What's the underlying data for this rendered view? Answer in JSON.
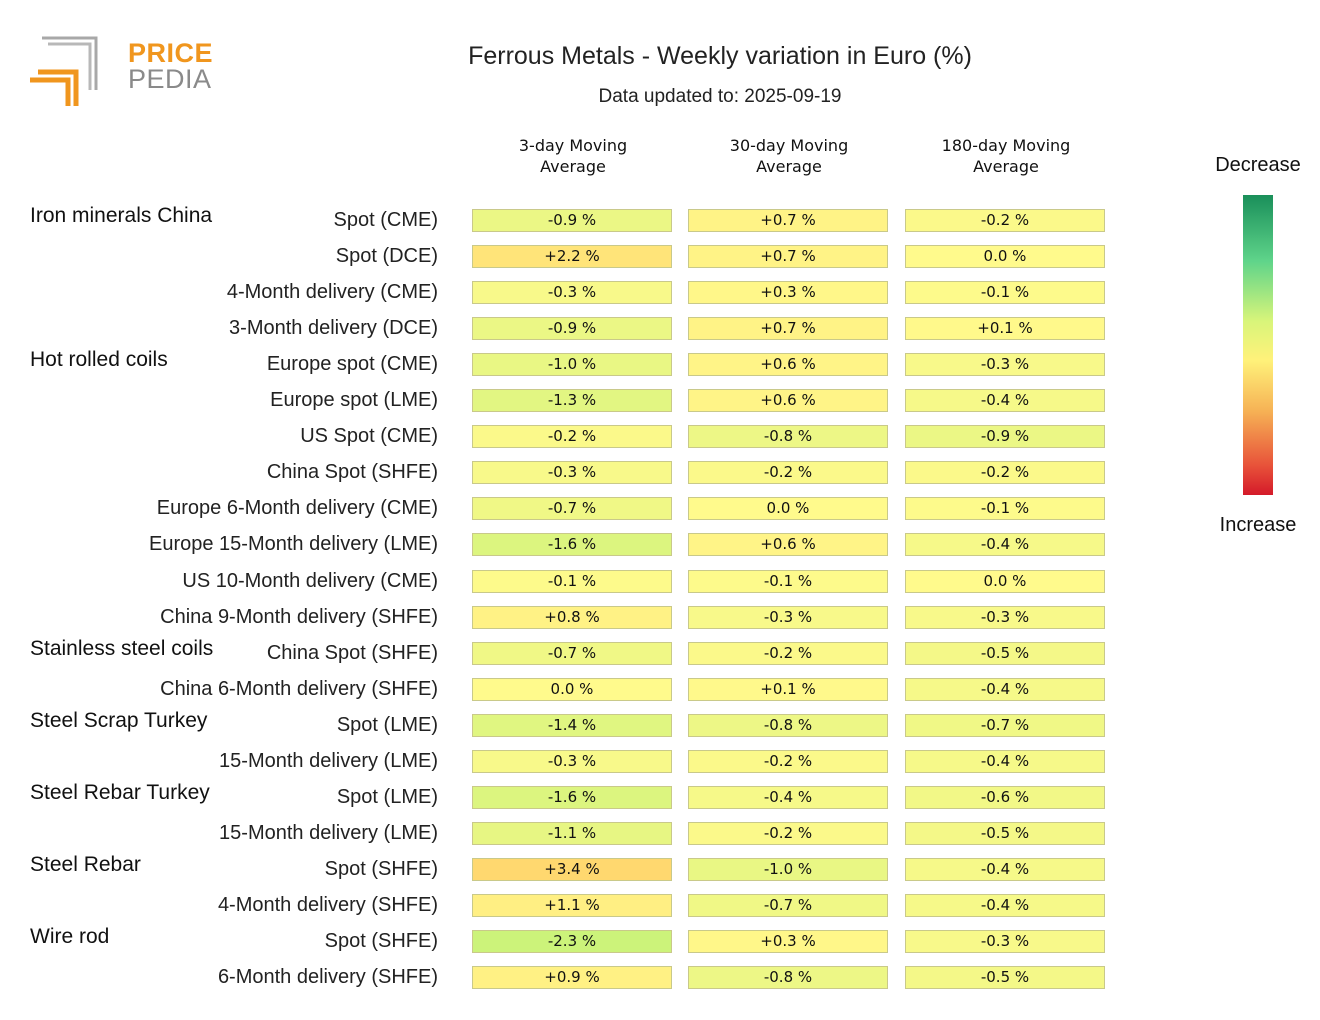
{
  "logo": {
    "line1": "PRICE",
    "line2": "PEDIA"
  },
  "title": "Ferrous Metals - Weekly variation in Euro (%)",
  "subtitle": "Data updated to: 2025-09-19",
  "legend": {
    "top": "Decrease",
    "bottom": "Increase"
  },
  "colors": {
    "decrease": "#1a8f5a",
    "neutral": "#fff27a",
    "increase": "#d41a2a"
  },
  "chart_data": {
    "type": "table",
    "title": "Ferrous Metals - Weekly variation in Euro (%)",
    "columns": [
      "3-day Moving\nAverage",
      "30-day Moving\nAverage",
      "180-day Moving\nAverage"
    ],
    "groups": [
      {
        "name": "Iron minerals China",
        "rows": [
          {
            "label": "Spot (CME)",
            "values": [
              -0.9,
              0.7,
              -0.2
            ],
            "display": [
              "-0.9 %",
              "+0.7 %",
              "-0.2 %"
            ]
          },
          {
            "label": "Spot (DCE)",
            "values": [
              2.2,
              0.7,
              0.0
            ],
            "display": [
              "+2.2 %",
              "+0.7 %",
              "0.0 %"
            ]
          },
          {
            "label": "4-Month delivery (CME)",
            "values": [
              -0.3,
              0.3,
              -0.1
            ],
            "display": [
              "-0.3 %",
              "+0.3 %",
              "-0.1 %"
            ]
          },
          {
            "label": "3-Month delivery (DCE)",
            "values": [
              -0.9,
              0.7,
              0.1
            ],
            "display": [
              "-0.9 %",
              "+0.7 %",
              "+0.1 %"
            ]
          }
        ]
      },
      {
        "name": "Hot rolled coils",
        "rows": [
          {
            "label": "Europe spot (CME)",
            "values": [
              -1.0,
              0.6,
              -0.3
            ],
            "display": [
              "-1.0 %",
              "+0.6 %",
              "-0.3 %"
            ]
          },
          {
            "label": "Europe spot (LME)",
            "values": [
              -1.3,
              0.6,
              -0.4
            ],
            "display": [
              "-1.3 %",
              "+0.6 %",
              "-0.4 %"
            ]
          },
          {
            "label": "US Spot (CME)",
            "values": [
              -0.2,
              -0.8,
              -0.9
            ],
            "display": [
              "-0.2 %",
              "-0.8 %",
              "-0.9 %"
            ]
          },
          {
            "label": "China Spot (SHFE)",
            "values": [
              -0.3,
              -0.2,
              -0.2
            ],
            "display": [
              "-0.3 %",
              "-0.2 %",
              "-0.2 %"
            ]
          },
          {
            "label": "Europe 6-Month delivery (CME)",
            "values": [
              -0.7,
              0.0,
              -0.1
            ],
            "display": [
              "-0.7 %",
              "0.0 %",
              "-0.1 %"
            ]
          },
          {
            "label": "Europe 15-Month delivery (LME)",
            "values": [
              -1.6,
              0.6,
              -0.4
            ],
            "display": [
              "-1.6 %",
              "+0.6 %",
              "-0.4 %"
            ]
          },
          {
            "label": "US 10-Month delivery (CME)",
            "values": [
              -0.1,
              -0.1,
              0.0
            ],
            "display": [
              "-0.1 %",
              "-0.1 %",
              "0.0 %"
            ]
          },
          {
            "label": "China 9-Month delivery (SHFE)",
            "values": [
              0.8,
              -0.3,
              -0.3
            ],
            "display": [
              "+0.8 %",
              "-0.3 %",
              "-0.3 %"
            ]
          }
        ]
      },
      {
        "name": "Stainless steel coils",
        "rows": [
          {
            "label": "China Spot (SHFE)",
            "values": [
              -0.7,
              -0.2,
              -0.5
            ],
            "display": [
              "-0.7 %",
              "-0.2 %",
              "-0.5 %"
            ]
          },
          {
            "label": "China 6-Month delivery (SHFE)",
            "values": [
              0.0,
              0.1,
              -0.4
            ],
            "display": [
              "0.0 %",
              "+0.1 %",
              "-0.4 %"
            ]
          }
        ]
      },
      {
        "name": "Steel Scrap Turkey",
        "rows": [
          {
            "label": "Spot (LME)",
            "values": [
              -1.4,
              -0.8,
              -0.7
            ],
            "display": [
              "-1.4 %",
              "-0.8 %",
              "-0.7 %"
            ]
          },
          {
            "label": "15-Month delivery (LME)",
            "values": [
              -0.3,
              -0.2,
              -0.4
            ],
            "display": [
              "-0.3 %",
              "-0.2 %",
              "-0.4 %"
            ]
          }
        ]
      },
      {
        "name": "Steel Rebar Turkey",
        "rows": [
          {
            "label": "Spot (LME)",
            "values": [
              -1.6,
              -0.4,
              -0.6
            ],
            "display": [
              "-1.6 %",
              "-0.4 %",
              "-0.6 %"
            ]
          },
          {
            "label": "15-Month delivery (LME)",
            "values": [
              -1.1,
              -0.2,
              -0.5
            ],
            "display": [
              "-1.1 %",
              "-0.2 %",
              "-0.5 %"
            ]
          }
        ]
      },
      {
        "name": "Steel Rebar",
        "rows": [
          {
            "label": "Spot (SHFE)",
            "values": [
              3.4,
              -1.0,
              -0.4
            ],
            "display": [
              "+3.4 %",
              "-1.0 %",
              "-0.4 %"
            ]
          },
          {
            "label": "4-Month delivery (SHFE)",
            "values": [
              1.1,
              -0.7,
              -0.4
            ],
            "display": [
              "+1.1 %",
              "-0.7 %",
              "-0.4 %"
            ]
          }
        ]
      },
      {
        "name": "Wire rod",
        "rows": [
          {
            "label": "Spot (SHFE)",
            "values": [
              -2.3,
              0.3,
              -0.3
            ],
            "display": [
              "-2.3 %",
              "+0.3 %",
              "-0.3 %"
            ]
          },
          {
            "label": "6-Month delivery (SHFE)",
            "values": [
              0.9,
              -0.8,
              -0.5
            ],
            "display": [
              "+0.9 %",
              "-0.8 %",
              "-0.5 %"
            ]
          }
        ]
      }
    ]
  }
}
